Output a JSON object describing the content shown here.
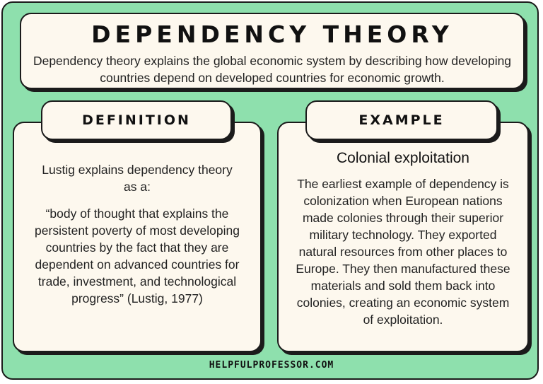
{
  "header": {
    "title": "DEPENDENCY THEORY",
    "subtitle": "Dependency theory explains the global economic system by describing how developing countries depend on developed countries for economic growth."
  },
  "definition": {
    "tab_label": "DEFINITION",
    "intro": "Lustig explains dependency theory as a:",
    "quote": "“body of thought that explains the persistent poverty of most developing countries by the fact that they are dependent on advanced countries for trade, investment, and technological progress” (Lustig, 1977)"
  },
  "example": {
    "tab_label": "EXAMPLE",
    "heading": "Colonial exploitation",
    "body": "The earliest example of dependency is colonization when European nations made colonies through their superior military technology. They exported natural resources from other places to Europe. They then manufactured these materials and sold them back into colonies, creating an economic system of exploitation."
  },
  "footer": {
    "site": "HELPFULPROFESSOR.COM"
  },
  "colors": {
    "background": "#8ee0ad",
    "card": "#fdf8ee",
    "border": "#1b1b1b"
  }
}
